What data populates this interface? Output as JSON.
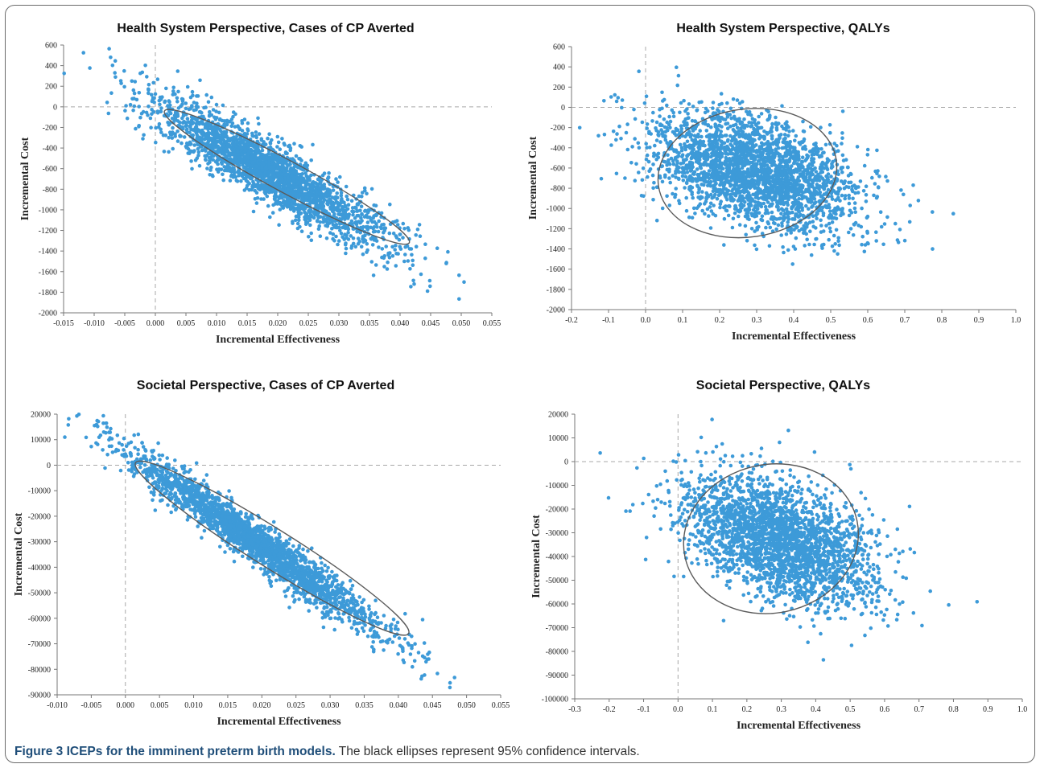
{
  "caption": {
    "label": "Figure 3 ICEPs for the imminent preterm birth models.",
    "text": "The black ellipses represent 95% confidence intervals."
  },
  "colors": {
    "points": "#3d9ad8",
    "ellipse": "#5a5a5a",
    "zero_line": "#a8a8a8",
    "axis": "#777777"
  },
  "chart_data": [
    {
      "type": "scatter",
      "title": "Health System Perspective, Cases of CP Averted",
      "xlabel": "Incremental Effectiveness",
      "ylabel": "Incremental Cost",
      "xlim": [
        -0.015,
        0.055
      ],
      "ylim": [
        -2000,
        600
      ],
      "xticks": [
        "-0.015",
        "-0.010",
        "-0.005",
        "0.000",
        "0.005",
        "0.010",
        "0.015",
        "0.020",
        "0.025",
        "0.030",
        "0.035",
        "0.040",
        "0.045",
        "0.050",
        "0.055"
      ],
      "yticks": [
        "600",
        "400",
        "200",
        "0",
        "-200",
        "-400",
        "-600",
        "-800",
        "-1000",
        "-1200",
        "-1400",
        "-1600",
        "-1800",
        "-2000"
      ],
      "cloud": {
        "center": [
          0.019,
          -650
        ],
        "sd_major": 0.0098,
        "slope": -33000,
        "noise": 150,
        "n": 2400
      },
      "ellipse": {
        "center": [
          0.0215,
          -680
        ],
        "ends": [
          [
            0.0015,
            -40
          ],
          [
            0.0415,
            -1320
          ]
        ],
        "half_width": 175
      }
    },
    {
      "type": "scatter",
      "title": "Health System Perspective, QALYs",
      "xlabel": "Incremental Effectiveness",
      "ylabel": "Incremental Cost",
      "xlim": [
        -0.2,
        1.0
      ],
      "ylim": [
        -2000,
        600
      ],
      "xticks": [
        "-0.2",
        "-0.1",
        "0.0",
        "0.1",
        "0.2",
        "0.3",
        "0.4",
        "0.5",
        "0.6",
        "0.7",
        "0.8",
        "0.9",
        "1.0"
      ],
      "yticks": [
        "600",
        "400",
        "200",
        "0",
        "-200",
        "-400",
        "-600",
        "-800",
        "-1000",
        "-1200",
        "-1400",
        "-1600",
        "-1800",
        "-2000"
      ],
      "cloud": {
        "center": [
          0.3,
          -640
        ],
        "sd_major": 0.14,
        "slope": -900,
        "noise": 260,
        "n": 2600
      },
      "ellipse": {
        "center": [
          0.275,
          -650
        ],
        "ends": [
          [
            0.035,
            -780
          ],
          [
            0.515,
            -520
          ]
        ],
        "half_width": 640
      }
    },
    {
      "type": "scatter",
      "title": "Societal Perspective, Cases of CP Averted",
      "xlabel": "Incremental Effectiveness",
      "ylabel": "Incremental Cost",
      "xlim": [
        -0.01,
        0.055
      ],
      "ylim": [
        -90000,
        20000
      ],
      "xticks": [
        "-0.010",
        "-0.005",
        "0.000",
        "0.005",
        "0.010",
        "0.015",
        "0.020",
        "0.025",
        "0.030",
        "0.035",
        "0.040",
        "0.045",
        "0.050",
        "0.055"
      ],
      "yticks": [
        "20000",
        "10000",
        "0",
        "-10000",
        "-20000",
        "-30000",
        "-40000",
        "-50000",
        "-60000",
        "-70000",
        "-80000",
        "-90000"
      ],
      "cloud": {
        "center": [
          0.019,
          -30000
        ],
        "sd_major": 0.0095,
        "slope": -1850000,
        "noise": 4500,
        "n": 2400
      },
      "ellipse": {
        "center": [
          0.0215,
          -32500
        ],
        "ends": [
          [
            0.0015,
            1000
          ],
          [
            0.0415,
            -66000
          ]
        ],
        "half_width": 9000
      }
    },
    {
      "type": "scatter",
      "title": "Societal Perspective, QALYs",
      "xlabel": "Incremental Effectiveness",
      "ylabel": "Incremental Cost",
      "xlim": [
        -0.3,
        1.0
      ],
      "ylim": [
        -100000,
        20000
      ],
      "xticks": [
        "-0.3",
        "-0.2",
        "-0.1",
        "0.0",
        "0.1",
        "0.2",
        "0.3",
        "0.4",
        "0.5",
        "0.6",
        "0.7",
        "0.8",
        "0.9",
        "1.0"
      ],
      "yticks": [
        "20000",
        "10000",
        "0",
        "-10000",
        "-20000",
        "-30000",
        "-40000",
        "-50000",
        "-60000",
        "-70000",
        "-80000",
        "-90000",
        "-100000"
      ],
      "cloud": {
        "center": [
          0.3,
          -33000
        ],
        "sd_major": 0.14,
        "slope": -45000,
        "noise": 12000,
        "n": 2600
      },
      "ellipse": {
        "center": [
          0.27,
          -32500
        ],
        "ends": [
          [
            0.02,
            -40000
          ],
          [
            0.52,
            -25000
          ]
        ],
        "half_width": 32000
      }
    }
  ]
}
